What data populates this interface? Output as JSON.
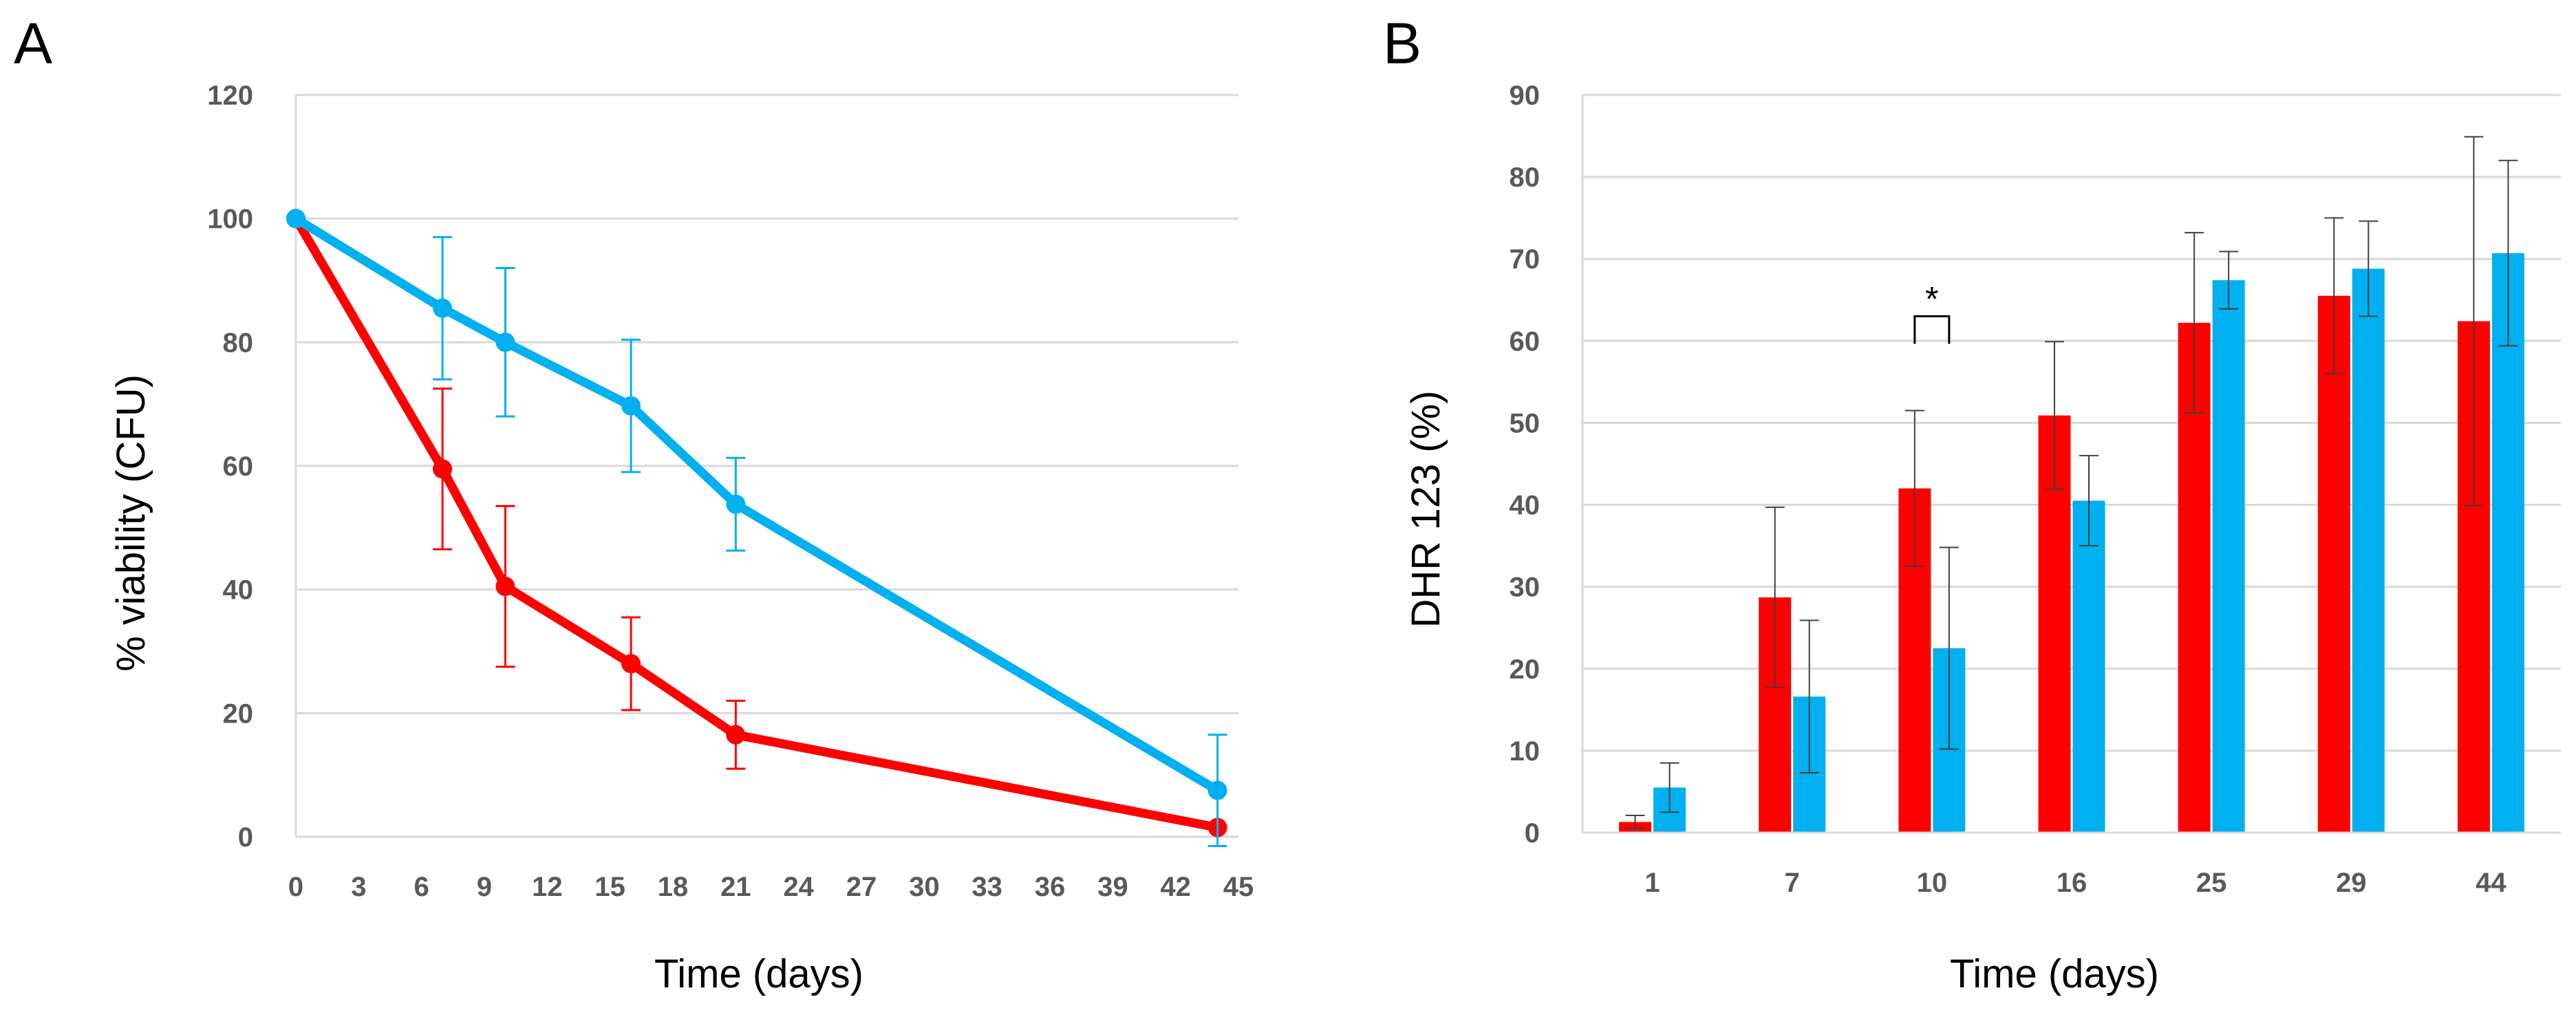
{
  "chart_data": [
    {
      "panel": "A",
      "type": "line",
      "title": "",
      "xlabel": "Time (days)",
      "ylabel": "% viability (CFU)",
      "xlim": [
        0,
        45
      ],
      "ylim": [
        0,
        120
      ],
      "xticks": [
        "0",
        "3",
        "6",
        "9",
        "12",
        "15",
        "18",
        "21",
        "24",
        "27",
        "30",
        "33",
        "36",
        "39",
        "42",
        "45"
      ],
      "yticks": [
        "0",
        "20",
        "40",
        "60",
        "80",
        "100",
        "120"
      ],
      "grid": true,
      "series": [
        {
          "name": "series-red",
          "color": "#ff0000",
          "x": [
            0,
            7,
            10,
            16,
            21,
            44
          ],
          "y": [
            100,
            59.5,
            40.5,
            28,
            16.5,
            1.5
          ],
          "err": [
            0,
            13,
            13,
            7.5,
            5.5,
            0
          ]
        },
        {
          "name": "series-blue",
          "color": "#00b0f0",
          "x": [
            0,
            7,
            10,
            16,
            21,
            44
          ],
          "y": [
            100,
            85.5,
            80,
            69.7,
            53.8,
            7.5
          ],
          "err": [
            0,
            11.5,
            12,
            10.7,
            7.5,
            9
          ]
        }
      ]
    },
    {
      "panel": "B",
      "type": "bar",
      "title": "",
      "xlabel": "Time (days)",
      "ylabel": "DHR 123 (%)",
      "ylim": [
        0,
        90
      ],
      "yticks": [
        "0",
        "10",
        "20",
        "30",
        "40",
        "50",
        "60",
        "70",
        "80",
        "90"
      ],
      "grid": true,
      "categories": [
        "1",
        "7",
        "10",
        "16",
        "25",
        "29",
        "44"
      ],
      "series": [
        {
          "name": "series-red",
          "color": "#ff0000",
          "values": [
            1.3,
            28.7,
            42,
            50.9,
            62.2,
            65.5,
            62.4
          ],
          "err": [
            0.8,
            11,
            9.5,
            9,
            11,
            9.5,
            22.5
          ]
        },
        {
          "name": "series-blue",
          "color": "#00b0f0",
          "values": [
            5.5,
            16.6,
            22.5,
            40.5,
            67.4,
            68.8,
            70.7
          ],
          "err": [
            3,
            9.3,
            12.3,
            5.5,
            3.5,
            5.8,
            11.3
          ]
        }
      ],
      "annotations": [
        {
          "text": "*",
          "category": "10",
          "value": 63
        }
      ]
    }
  ]
}
